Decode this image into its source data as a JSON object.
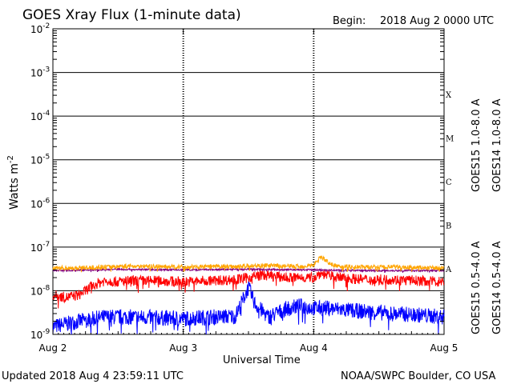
{
  "header": {
    "title": "GOES Xray Flux (1-minute data)",
    "begin_label": "Begin:",
    "begin_value": "2018 Aug 2 0000 UTC"
  },
  "footer": {
    "updated": "Updated 2018 Aug  4 23:59:11 UTC",
    "credit": "NOAA/SWPC Boulder, CO USA"
  },
  "chart_data": {
    "type": "line",
    "title": "GOES Xray Flux (1-minute data)",
    "xlabel": "Universal Time",
    "ylabel": "Watts m",
    "ylabel_superscript": "-2",
    "y_scale": "log",
    "ylim": [
      1e-09,
      0.01
    ],
    "xlim": [
      "2018-08-02 00:00",
      "2018-08-05 00:00"
    ],
    "x_ticks": [
      "Aug 2",
      "Aug 3",
      "Aug 4",
      "Aug 5"
    ],
    "y_ticks": [
      {
        "mantissa": "10",
        "exp": "-9",
        "value": 1e-09
      },
      {
        "mantissa": "10",
        "exp": "-8",
        "value": 1e-08
      },
      {
        "mantissa": "10",
        "exp": "-7",
        "value": 1e-07
      },
      {
        "mantissa": "10",
        "exp": "-6",
        "value": 1e-06
      },
      {
        "mantissa": "10",
        "exp": "-5",
        "value": 1e-05
      },
      {
        "mantissa": "10",
        "exp": "-4",
        "value": 0.0001
      },
      {
        "mantissa": "10",
        "exp": "-3",
        "value": 0.001
      },
      {
        "mantissa": "10",
        "exp": "-2",
        "value": 0.01
      }
    ],
    "flare_classes": [
      {
        "label": "A",
        "value": 1e-08
      },
      {
        "label": "B",
        "value": 1e-07
      },
      {
        "label": "C",
        "value": 1e-06
      },
      {
        "label": "M",
        "value": 1e-05
      },
      {
        "label": "X",
        "value": 0.0001
      }
    ],
    "grid": true,
    "legend_position": "right",
    "series": [
      {
        "name": "GOES15 1.0-8.0 A",
        "color": "#ff0000",
        "x_days": [
          0,
          0.1,
          0.2,
          0.25,
          0.3,
          0.35,
          0.4,
          0.5,
          0.6,
          0.8,
          1.0,
          1.2,
          1.4,
          1.5,
          1.6,
          1.8,
          2.0,
          2.05,
          2.2,
          2.4,
          2.6,
          2.8,
          3.0
        ],
        "values": [
          8e-09,
          7e-09,
          8e-09,
          1e-08,
          1.3e-08,
          1.5e-08,
          1.7e-08,
          1.6e-08,
          1.7e-08,
          1.7e-08,
          1.6e-08,
          1.7e-08,
          1.8e-08,
          2e-08,
          2.3e-08,
          2e-08,
          2e-08,
          2.5e-08,
          2e-08,
          1.8e-08,
          1.8e-08,
          1.7e-08,
          1.6e-08
        ],
        "noise_dex": 0.12
      },
      {
        "name": "GOES14 1.0-8.0 A",
        "color": "#ffa500",
        "x_days": [
          0,
          0.3,
          0.6,
          1.0,
          1.4,
          1.6,
          1.9,
          2.0,
          2.05,
          2.15,
          2.3,
          2.6,
          3.0
        ],
        "values": [
          3.3e-08,
          3.4e-08,
          3.7e-08,
          3.5e-08,
          3.6e-08,
          3.8e-08,
          3.6e-08,
          3.9e-08,
          6e-08,
          3.8e-08,
          3.5e-08,
          3.5e-08,
          3.3e-08
        ],
        "noise_dex": 0.05
      },
      {
        "name": "GOES15 0.5-4.0 A",
        "color": "#0000ff",
        "x_days": [
          0,
          0.2,
          0.4,
          0.6,
          0.8,
          1.0,
          1.2,
          1.4,
          1.5,
          1.55,
          1.65,
          1.8,
          1.9,
          2.0,
          2.1,
          2.3,
          2.6,
          2.8,
          3.0
        ],
        "values": [
          1.5e-09,
          2e-09,
          2.5e-09,
          2.5e-09,
          2.4e-09,
          2.3e-09,
          2.5e-09,
          2.6e-09,
          1.2e-08,
          5e-09,
          2.5e-09,
          4e-09,
          4.5e-09,
          4e-09,
          4e-09,
          3.5e-09,
          3e-09,
          2.8e-09,
          2.5e-09
        ],
        "noise_dex": 0.18
      },
      {
        "name": "GOES14 0.5-4.0 A",
        "color": "#800080",
        "x_days": [
          0,
          0.3,
          0.5,
          1.0,
          1.5,
          2.0,
          2.5,
          3.0
        ],
        "values": [
          2.9e-08,
          3e-08,
          3.1e-08,
          3e-08,
          3.1e-08,
          3e-08,
          2.9e-08,
          2.9e-08
        ],
        "noise_dex": 0.02
      }
    ]
  }
}
